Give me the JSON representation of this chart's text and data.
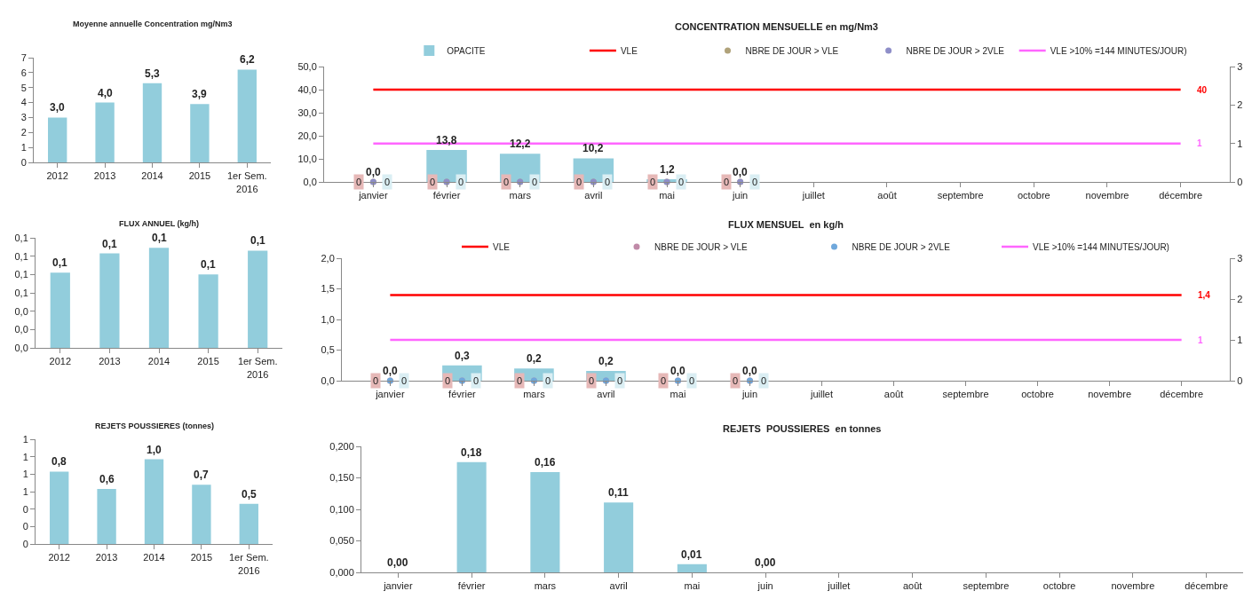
{
  "chart_data": [
    {
      "type": "bar",
      "title": "Moyenne annuelle Concentration mg/Nm3",
      "categories": [
        "2012",
        "2013",
        "2014",
        "2015",
        "1er Sem.\n2016"
      ],
      "values": [
        3.0,
        4.0,
        5.3,
        3.9,
        6.2
      ],
      "value_labels": [
        "3,0",
        "4,0",
        "5,3",
        "3,9",
        "6,2"
      ],
      "color": "#92cddc",
      "ylim": [
        0,
        7
      ],
      "yticks": [
        0,
        1,
        2,
        3,
        4,
        5,
        6,
        7
      ]
    },
    {
      "type": "bar",
      "title": "CONCENTRATION MENSUELLE en mg/Nm3",
      "categories": [
        "janvier",
        "février",
        "mars",
        "avril",
        "mai",
        "juin",
        "juillet",
        "août",
        "septembre",
        "octobre",
        "novembre",
        "décembre"
      ],
      "series": [
        {
          "name": "OPACITE",
          "type": "bar",
          "color": "#92cddc",
          "values": [
            0,
            13.8,
            12.2,
            10.2,
            1.2,
            0,
            null,
            null,
            null,
            null,
            null,
            null
          ],
          "value_labels": [
            "0,0",
            "13,8",
            "12,2",
            "10,2",
            "1,2",
            "0,0",
            null,
            null,
            null,
            null,
            null,
            null
          ]
        },
        {
          "name": "VLE",
          "type": "line",
          "color": "#ff0000",
          "values": [
            40,
            40,
            40,
            40,
            40,
            40,
            40,
            40,
            40,
            40,
            40,
            40
          ],
          "value_labels": [
            null,
            null,
            null,
            null,
            null,
            null,
            null,
            null,
            null,
            null,
            null,
            "40"
          ]
        },
        {
          "name": "NBRE DE JOUR > VLE",
          "type": "scatter",
          "axis": "y2",
          "marker": "circle",
          "color": "#b0a27a",
          "values": [
            0,
            0,
            0,
            0,
            0,
            0,
            null,
            null,
            null,
            null,
            null,
            null
          ],
          "value_labels": [
            "0",
            "0",
            "0",
            "0",
            "0",
            "0",
            null,
            null,
            null,
            null,
            null,
            null
          ]
        },
        {
          "name": "NBRE DE JOUR > 2VLE",
          "type": "scatter",
          "axis": "y2",
          "marker": "circle",
          "color": "#8e8ec8",
          "values": [
            0,
            0,
            0,
            0,
            0,
            0,
            null,
            null,
            null,
            null,
            null,
            null
          ],
          "value_labels": [
            "0",
            "0",
            "0",
            "0",
            "0",
            "0",
            null,
            null,
            null,
            null,
            null,
            null
          ]
        },
        {
          "name": "VLE >10% =144 MINUTES/JOUR)",
          "type": "line",
          "axis": "y2",
          "color": "#ff66ff",
          "values": [
            1,
            1,
            1,
            1,
            1,
            1,
            1,
            1,
            1,
            1,
            1,
            1
          ],
          "value_labels": [
            null,
            null,
            null,
            null,
            null,
            null,
            null,
            null,
            null,
            null,
            null,
            "1"
          ]
        }
      ],
      "ylim": [
        0,
        50
      ],
      "yticks": [
        {
          "value": 0,
          "label": "0,0"
        },
        {
          "value": 10,
          "label": "10,0"
        },
        {
          "value": 20,
          "label": "20,0"
        },
        {
          "value": 30,
          "label": "30,0"
        },
        {
          "value": 40,
          "label": "40,0"
        },
        {
          "value": 50,
          "label": "50,0"
        }
      ],
      "y2lim": [
        0,
        3
      ],
      "y2ticks": [
        0,
        1,
        2,
        3
      ],
      "legend": "top"
    },
    {
      "type": "bar",
      "title": "FLUX ANNUEL (kg/h)",
      "categories": [
        "2012",
        "2013",
        "2014",
        "2015",
        "1er Sem.\n2016"
      ],
      "values": [
        0.082,
        0.103,
        0.109,
        0.08,
        0.106
      ],
      "value_labels": [
        "0,1",
        "0,1",
        "0,1",
        "0,1",
        "0,1"
      ],
      "color": "#92cddc",
      "ylim": [
        0,
        0.12
      ],
      "yticks": [
        {
          "value": 0,
          "label": "0,0"
        },
        {
          "value": 0.02,
          "label": "0,0"
        },
        {
          "value": 0.04,
          "label": "0,0"
        },
        {
          "value": 0.06,
          "label": "0,1"
        },
        {
          "value": 0.08,
          "label": "0,1"
        },
        {
          "value": 0.1,
          "label": "0,1"
        },
        {
          "value": 0.12,
          "label": "0,1"
        }
      ]
    },
    {
      "type": "bar",
      "title": "FLUX MENSUEL  en kg/h",
      "categories": [
        "janvier",
        "février",
        "mars",
        "avril",
        "mai",
        "juin",
        "juillet",
        "août",
        "septembre",
        "octobre",
        "novembre",
        "décembre"
      ],
      "series": [
        {
          "type": "bar",
          "color": "#92cddc",
          "values": [
            0,
            0.25,
            0.2,
            0.16,
            0,
            0,
            null,
            null,
            null,
            null,
            null,
            null
          ],
          "value_labels": [
            "0,0",
            "0,3",
            "0,2",
            "0,2",
            "0,0",
            "0,0",
            null,
            null,
            null,
            null,
            null,
            null
          ]
        },
        {
          "name": "VLE",
          "type": "line",
          "color": "#ff0000",
          "values": [
            1.4,
            1.4,
            1.4,
            1.4,
            1.4,
            1.4,
            1.4,
            1.4,
            1.4,
            1.4,
            1.4,
            1.4
          ],
          "value_labels": [
            null,
            null,
            null,
            null,
            null,
            null,
            null,
            null,
            null,
            null,
            null,
            "1,4"
          ]
        },
        {
          "name": "NBRE DE JOUR > VLE",
          "type": "scatter",
          "axis": "y2",
          "marker": "circle",
          "color": "#c08aa8",
          "values": [
            0,
            0,
            0,
            0,
            0,
            0,
            null,
            null,
            null,
            null,
            null,
            null
          ],
          "value_labels": [
            "0",
            "0",
            "0",
            "0",
            "0",
            "0",
            null,
            null,
            null,
            null,
            null,
            null
          ]
        },
        {
          "name": "NBRE DE JOUR > 2VLE",
          "type": "scatter",
          "axis": "y2",
          "marker": "circle",
          "color": "#6fa8dc",
          "values": [
            0,
            0,
            0,
            0,
            0,
            0,
            null,
            null,
            null,
            null,
            null,
            null
          ],
          "value_labels": [
            "0",
            "0",
            "0",
            "0",
            "0",
            "0",
            null,
            null,
            null,
            null,
            null,
            null
          ]
        },
        {
          "name": "VLE >10% =144 MINUTES/JOUR)",
          "type": "line",
          "axis": "y2",
          "color": "#ff66ff",
          "values": [
            1,
            1,
            1,
            1,
            1,
            1,
            1,
            1,
            1,
            1,
            1,
            1
          ],
          "value_labels": [
            null,
            null,
            null,
            null,
            null,
            null,
            null,
            null,
            null,
            null,
            null,
            "1"
          ]
        }
      ],
      "ylim": [
        0,
        2
      ],
      "yticks": [
        {
          "value": 0,
          "label": "0,0"
        },
        {
          "value": 0.5,
          "label": "0,5"
        },
        {
          "value": 1,
          "label": "1,0"
        },
        {
          "value": 1.5,
          "label": "1,5"
        },
        {
          "value": 2,
          "label": "2,0"
        }
      ],
      "y2lim": [
        0,
        3
      ],
      "y2ticks": [
        0,
        1,
        2,
        3
      ],
      "legend": "top"
    },
    {
      "type": "bar",
      "title": "REJETS POUSSIERES (tonnes)",
      "categories": [
        "2012",
        "2013",
        "2014",
        "2015",
        "1er Sem.\n2016"
      ],
      "values": [
        0.83,
        0.63,
        0.97,
        0.68,
        0.46
      ],
      "value_labels": [
        "0,8",
        "0,6",
        "1,0",
        "0,7",
        "0,5"
      ],
      "color": "#92cddc",
      "ylim": [
        0,
        1.2
      ],
      "yticks": [
        {
          "value": 0,
          "label": "0"
        },
        {
          "value": 0.2,
          "label": "0"
        },
        {
          "value": 0.4,
          "label": "0"
        },
        {
          "value": 0.6,
          "label": "1"
        },
        {
          "value": 0.8,
          "label": "1"
        },
        {
          "value": 1.0,
          "label": "1"
        },
        {
          "value": 1.2,
          "label": "1"
        }
      ]
    },
    {
      "type": "bar",
      "title": "REJETS  POUSSIERES  en tonnes",
      "categories": [
        "janvier",
        "février",
        "mars",
        "avril",
        "mai",
        "juin",
        "juillet",
        "août",
        "septembre",
        "octobre",
        "novembre",
        "décembre"
      ],
      "values": [
        0,
        0.175,
        0.159,
        0.111,
        0.013,
        0,
        null,
        null,
        null,
        null,
        null,
        null
      ],
      "value_labels": [
        "0,00",
        "0,18",
        "0,16",
        "0,11",
        "0,01",
        "0,00",
        null,
        null,
        null,
        null,
        null,
        null
      ],
      "color": "#92cddc",
      "ylim": [
        0,
        0.2
      ],
      "yticks": [
        {
          "value": 0,
          "label": "0,000"
        },
        {
          "value": 0.05,
          "label": "0,050"
        },
        {
          "value": 0.1,
          "label": "0,100"
        },
        {
          "value": 0.15,
          "label": "0,150"
        },
        {
          "value": 0.2,
          "label": "0,200"
        }
      ]
    }
  ]
}
